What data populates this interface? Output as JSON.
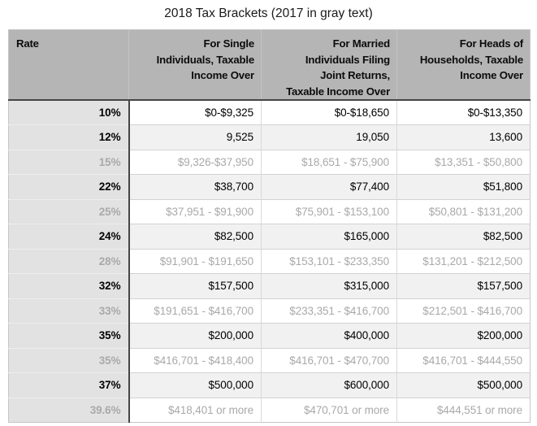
{
  "chart_data": {
    "type": "table",
    "title": "2018 Tax Brackets (2017 in gray text)",
    "columns": [
      "Rate",
      "For Single\nIndividuals, Taxable\nIncome Over",
      "For Married\nIndividuals Filing\nJoint Returns,\nTaxable Income Over",
      "For Heads of\nHouseholds, Taxable\nIncome Over"
    ],
    "rows": [
      {
        "year": "2018",
        "rate": "10%",
        "single": "$0-$9,325",
        "married": "$0-$18,650",
        "heads": "$0-$13,350"
      },
      {
        "year": "2018",
        "rate": "12%",
        "single": "9,525",
        "married": "19,050",
        "heads": "13,600"
      },
      {
        "year": "2017",
        "rate": "15%",
        "single": "$9,326-$37,950",
        "married": "$18,651 - $75,900",
        "heads": "$13,351 - $50,800"
      },
      {
        "year": "2018",
        "rate": "22%",
        "single": "$38,700",
        "married": "$77,400",
        "heads": "$51,800"
      },
      {
        "year": "2017",
        "rate": "25%",
        "single": "$37,951 - $91,900",
        "married": "$75,901 - $153,100",
        "heads": "$50,801 - $131,200"
      },
      {
        "year": "2018",
        "rate": "24%",
        "single": "$82,500",
        "married": "$165,000",
        "heads": "$82,500"
      },
      {
        "year": "2017",
        "rate": "28%",
        "single": "$91,901 - $191,650",
        "married": "$153,101 - $233,350",
        "heads": "$131,201 - $212,500"
      },
      {
        "year": "2018",
        "rate": "32%",
        "single": "$157,500",
        "married": "$315,000",
        "heads": "$157,500"
      },
      {
        "year": "2017",
        "rate": "33%",
        "single": "$191,651 - $416,700",
        "married": "$233,351 - $416,700",
        "heads": "$212,501 - $416,700"
      },
      {
        "year": "2018",
        "rate": "35%",
        "single": "$200,000",
        "married": "$400,000",
        "heads": "$200,000"
      },
      {
        "year": "2017",
        "rate": "35%",
        "single": "$416,701 - $418,400",
        "married": "$416,701 - $470,700",
        "heads": "$416,701 - $444,550"
      },
      {
        "year": "2018",
        "rate": "37%",
        "single": "$500,000",
        "married": "$600,000",
        "heads": "$500,000"
      },
      {
        "year": "2017",
        "rate": "39.6%",
        "single": "$418,401 or more",
        "married": "$470,701 or more",
        "heads": "$444,551 or more"
      }
    ]
  },
  "colors": {
    "header_bg": "#b5b5b5",
    "rate_column_bg": "#e2e2e2",
    "alt_row_bg": "#f1f1f1",
    "gray_text_2017": "#a9a9a9",
    "black_text_2018": "#000000",
    "dark_border": "#454545"
  }
}
